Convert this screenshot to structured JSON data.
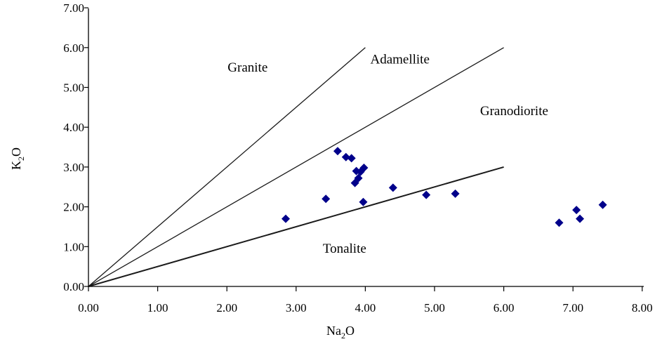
{
  "chart_data": {
    "type": "scatter",
    "xlabel": {
      "main": "Na",
      "sub": "2",
      "tail": "O"
    },
    "ylabel": {
      "main": "K",
      "sub": "2",
      "tail": "O"
    },
    "xlim": [
      0,
      8
    ],
    "ylim": [
      0,
      7
    ],
    "x_ticks": [
      "0.00",
      "1.00",
      "2.00",
      "3.00",
      "4.00",
      "5.00",
      "6.00",
      "7.00",
      "8.00"
    ],
    "y_ticks": [
      "0.00",
      "1.00",
      "2.00",
      "3.00",
      "4.00",
      "5.00",
      "6.00",
      "7.00"
    ],
    "grid": false,
    "marker": "diamond",
    "marker_color": "#00008b",
    "divider_lines": [
      {
        "from": [
          0,
          0
        ],
        "to": [
          4.0,
          6.0
        ]
      },
      {
        "from": [
          0,
          0
        ],
        "to": [
          6.0,
          6.0
        ]
      },
      {
        "from": [
          0,
          0
        ],
        "to": [
          6.0,
          3.0
        ]
      }
    ],
    "regions": [
      {
        "name": "Granite",
        "at": [
          2.3,
          5.4
        ]
      },
      {
        "name": "Adamellite",
        "at": [
          4.5,
          5.6
        ]
      },
      {
        "name": "Granodiorite",
        "at": [
          6.15,
          4.3
        ]
      },
      {
        "name": "Tonalite",
        "at": [
          3.7,
          0.85
        ]
      }
    ],
    "points": [
      {
        "x": 2.85,
        "y": 1.7
      },
      {
        "x": 3.43,
        "y": 2.2
      },
      {
        "x": 3.6,
        "y": 3.4
      },
      {
        "x": 3.72,
        "y": 3.25
      },
      {
        "x": 3.8,
        "y": 3.22
      },
      {
        "x": 3.85,
        "y": 2.6
      },
      {
        "x": 3.87,
        "y": 2.9
      },
      {
        "x": 3.9,
        "y": 2.72
      },
      {
        "x": 3.93,
        "y": 2.88
      },
      {
        "x": 3.98,
        "y": 2.98
      },
      {
        "x": 3.97,
        "y": 2.12
      },
      {
        "x": 4.4,
        "y": 2.48
      },
      {
        "x": 4.88,
        "y": 2.3
      },
      {
        "x": 5.3,
        "y": 2.33
      },
      {
        "x": 6.8,
        "y": 1.6
      },
      {
        "x": 7.05,
        "y": 1.92
      },
      {
        "x": 7.1,
        "y": 1.7
      },
      {
        "x": 7.43,
        "y": 2.05
      }
    ]
  }
}
